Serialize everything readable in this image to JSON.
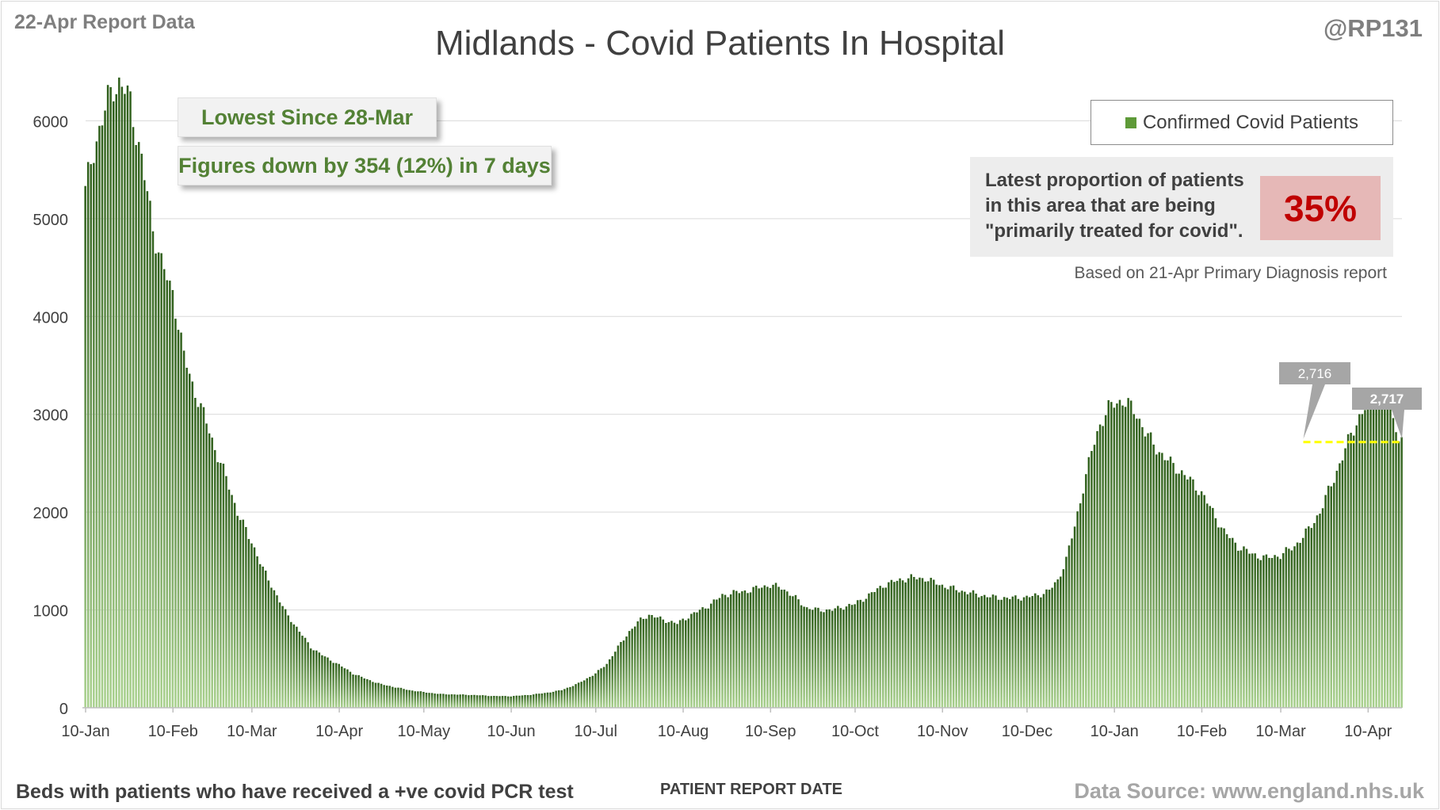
{
  "header": {
    "report_date": "22-Apr Report Data",
    "author": "@RP131",
    "title": "Midlands - Covid Patients In Hospital"
  },
  "callouts": {
    "lowest_since": "Lowest Since 28-Mar",
    "change": "Figures down by 354 (12%) in 7 days"
  },
  "legend": {
    "label": "Confirmed Covid Patients"
  },
  "proportion": {
    "text_lines": [
      "Latest proportion of patients",
      "in this area that are being",
      "\"primarily treated for covid\"."
    ],
    "value": "35%",
    "note": "Based on 21-Apr Primary Diagnosis report"
  },
  "footer": {
    "left": "Beds with patients who have received a +ve covid PCR test",
    "xlabel": "PATIENT REPORT DATE",
    "source": "Data Source: www.england.nhs.uk"
  },
  "colors": {
    "bar_top": "#2e5e1a",
    "bar_bottom": "#a9d18e",
    "reference_line": "#ffff00",
    "badge_text": "#c00000"
  },
  "chart_data": {
    "type": "bar",
    "title": "Midlands - Covid Patients In Hospital",
    "xlabel": "PATIENT REPORT DATE",
    "ylabel": "",
    "ylim": [
      0,
      6400
    ],
    "y_ticks": [
      0,
      1000,
      2000,
      3000,
      4000,
      5000,
      6000
    ],
    "x_ticks": [
      {
        "label": "10-Jan",
        "day": 0
      },
      {
        "label": "10-Feb",
        "day": 31
      },
      {
        "label": "10-Mar",
        "day": 59
      },
      {
        "label": "10-Apr",
        "day": 90
      },
      {
        "label": "10-May",
        "day": 120
      },
      {
        "label": "10-Jun",
        "day": 151
      },
      {
        "label": "10-Jul",
        "day": 181
      },
      {
        "label": "10-Aug",
        "day": 212
      },
      {
        "label": "10-Sep",
        "day": 243
      },
      {
        "label": "10-Oct",
        "day": 273
      },
      {
        "label": "10-Nov",
        "day": 304
      },
      {
        "label": "10-Dec",
        "day": 334
      },
      {
        "label": "10-Jan",
        "day": 365
      },
      {
        "label": "10-Feb",
        "day": 396
      },
      {
        "label": "10-Mar",
        "day": 424
      },
      {
        "label": "10-Apr",
        "day": 455
      }
    ],
    "grid": true,
    "legend_position": "top-right",
    "series": [
      {
        "name": "Confirmed Covid Patients",
        "anchors": [
          [
            0,
            5280
          ],
          [
            3,
            5700
          ],
          [
            6,
            6020
          ],
          [
            8,
            6200
          ],
          [
            10,
            6350
          ],
          [
            12,
            6380
          ],
          [
            14,
            6320
          ],
          [
            16,
            6180
          ],
          [
            18,
            5900
          ],
          [
            20,
            5600
          ],
          [
            22,
            5250
          ],
          [
            24,
            4900
          ],
          [
            27,
            4560
          ],
          [
            30,
            4300
          ],
          [
            31,
            4250
          ],
          [
            35,
            3600
          ],
          [
            38,
            3300
          ],
          [
            42,
            3000
          ],
          [
            46,
            2650
          ],
          [
            50,
            2350
          ],
          [
            54,
            2000
          ],
          [
            58,
            1750
          ],
          [
            59,
            1700
          ],
          [
            63,
            1420
          ],
          [
            67,
            1200
          ],
          [
            71,
            980
          ],
          [
            76,
            780
          ],
          [
            80,
            620
          ],
          [
            85,
            520
          ],
          [
            90,
            440
          ],
          [
            95,
            350
          ],
          [
            100,
            290
          ],
          [
            105,
            240
          ],
          [
            110,
            210
          ],
          [
            115,
            180
          ],
          [
            120,
            160
          ],
          [
            126,
            140
          ],
          [
            132,
            135
          ],
          [
            138,
            130
          ],
          [
            145,
            120
          ],
          [
            151,
            118
          ],
          [
            157,
            130
          ],
          [
            163,
            150
          ],
          [
            169,
            180
          ],
          [
            175,
            250
          ],
          [
            181,
            350
          ],
          [
            185,
            450
          ],
          [
            189,
            620
          ],
          [
            193,
            780
          ],
          [
            197,
            900
          ],
          [
            200,
            950
          ],
          [
            205,
            900
          ],
          [
            210,
            860
          ],
          [
            212,
            900
          ],
          [
            217,
            980
          ],
          [
            222,
            1060
          ],
          [
            226,
            1150
          ],
          [
            231,
            1180
          ],
          [
            236,
            1200
          ],
          [
            240,
            1240
          ],
          [
            243,
            1250
          ],
          [
            247,
            1230
          ],
          [
            252,
            1120
          ],
          [
            256,
            1020
          ],
          [
            260,
            1000
          ],
          [
            265,
            1000
          ],
          [
            270,
            1040
          ],
          [
            273,
            1060
          ],
          [
            278,
            1150
          ],
          [
            283,
            1250
          ],
          [
            288,
            1300
          ],
          [
            293,
            1330
          ],
          [
            298,
            1320
          ],
          [
            304,
            1250
          ],
          [
            310,
            1200
          ],
          [
            316,
            1160
          ],
          [
            322,
            1130
          ],
          [
            328,
            1120
          ],
          [
            334,
            1130
          ],
          [
            338,
            1150
          ],
          [
            342,
            1200
          ],
          [
            345,
            1300
          ],
          [
            348,
            1520
          ],
          [
            351,
            1850
          ],
          [
            354,
            2250
          ],
          [
            357,
            2620
          ],
          [
            360,
            2900
          ],
          [
            363,
            3060
          ],
          [
            365,
            3110
          ],
          [
            368,
            3140
          ],
          [
            370,
            3100
          ],
          [
            373,
            3000
          ],
          [
            376,
            2820
          ],
          [
            380,
            2650
          ],
          [
            385,
            2500
          ],
          [
            390,
            2380
          ],
          [
            395,
            2230
          ],
          [
            396,
            2200
          ],
          [
            400,
            2000
          ],
          [
            404,
            1800
          ],
          [
            409,
            1650
          ],
          [
            414,
            1570
          ],
          [
            419,
            1530
          ],
          [
            424,
            1560
          ],
          [
            429,
            1650
          ],
          [
            434,
            1820
          ],
          [
            438,
            2000
          ],
          [
            442,
            2280
          ],
          [
            446,
            2560
          ],
          [
            449,
            2800
          ],
          [
            452,
            2970
          ],
          [
            455,
            3100
          ],
          [
            458,
            3180
          ],
          [
            461,
            3160
          ],
          [
            463,
            3100
          ],
          [
            465,
            2900
          ],
          [
            466,
            2716
          ],
          [
            467,
            2717
          ]
        ]
      }
    ],
    "annotations": [
      {
        "label": "2,716",
        "day": 432,
        "value": 2716
      },
      {
        "label": "2,717",
        "day": 467,
        "value": 2717
      }
    ],
    "reference_line": {
      "value": 2716,
      "from_day": 432,
      "to_day": 467
    }
  }
}
